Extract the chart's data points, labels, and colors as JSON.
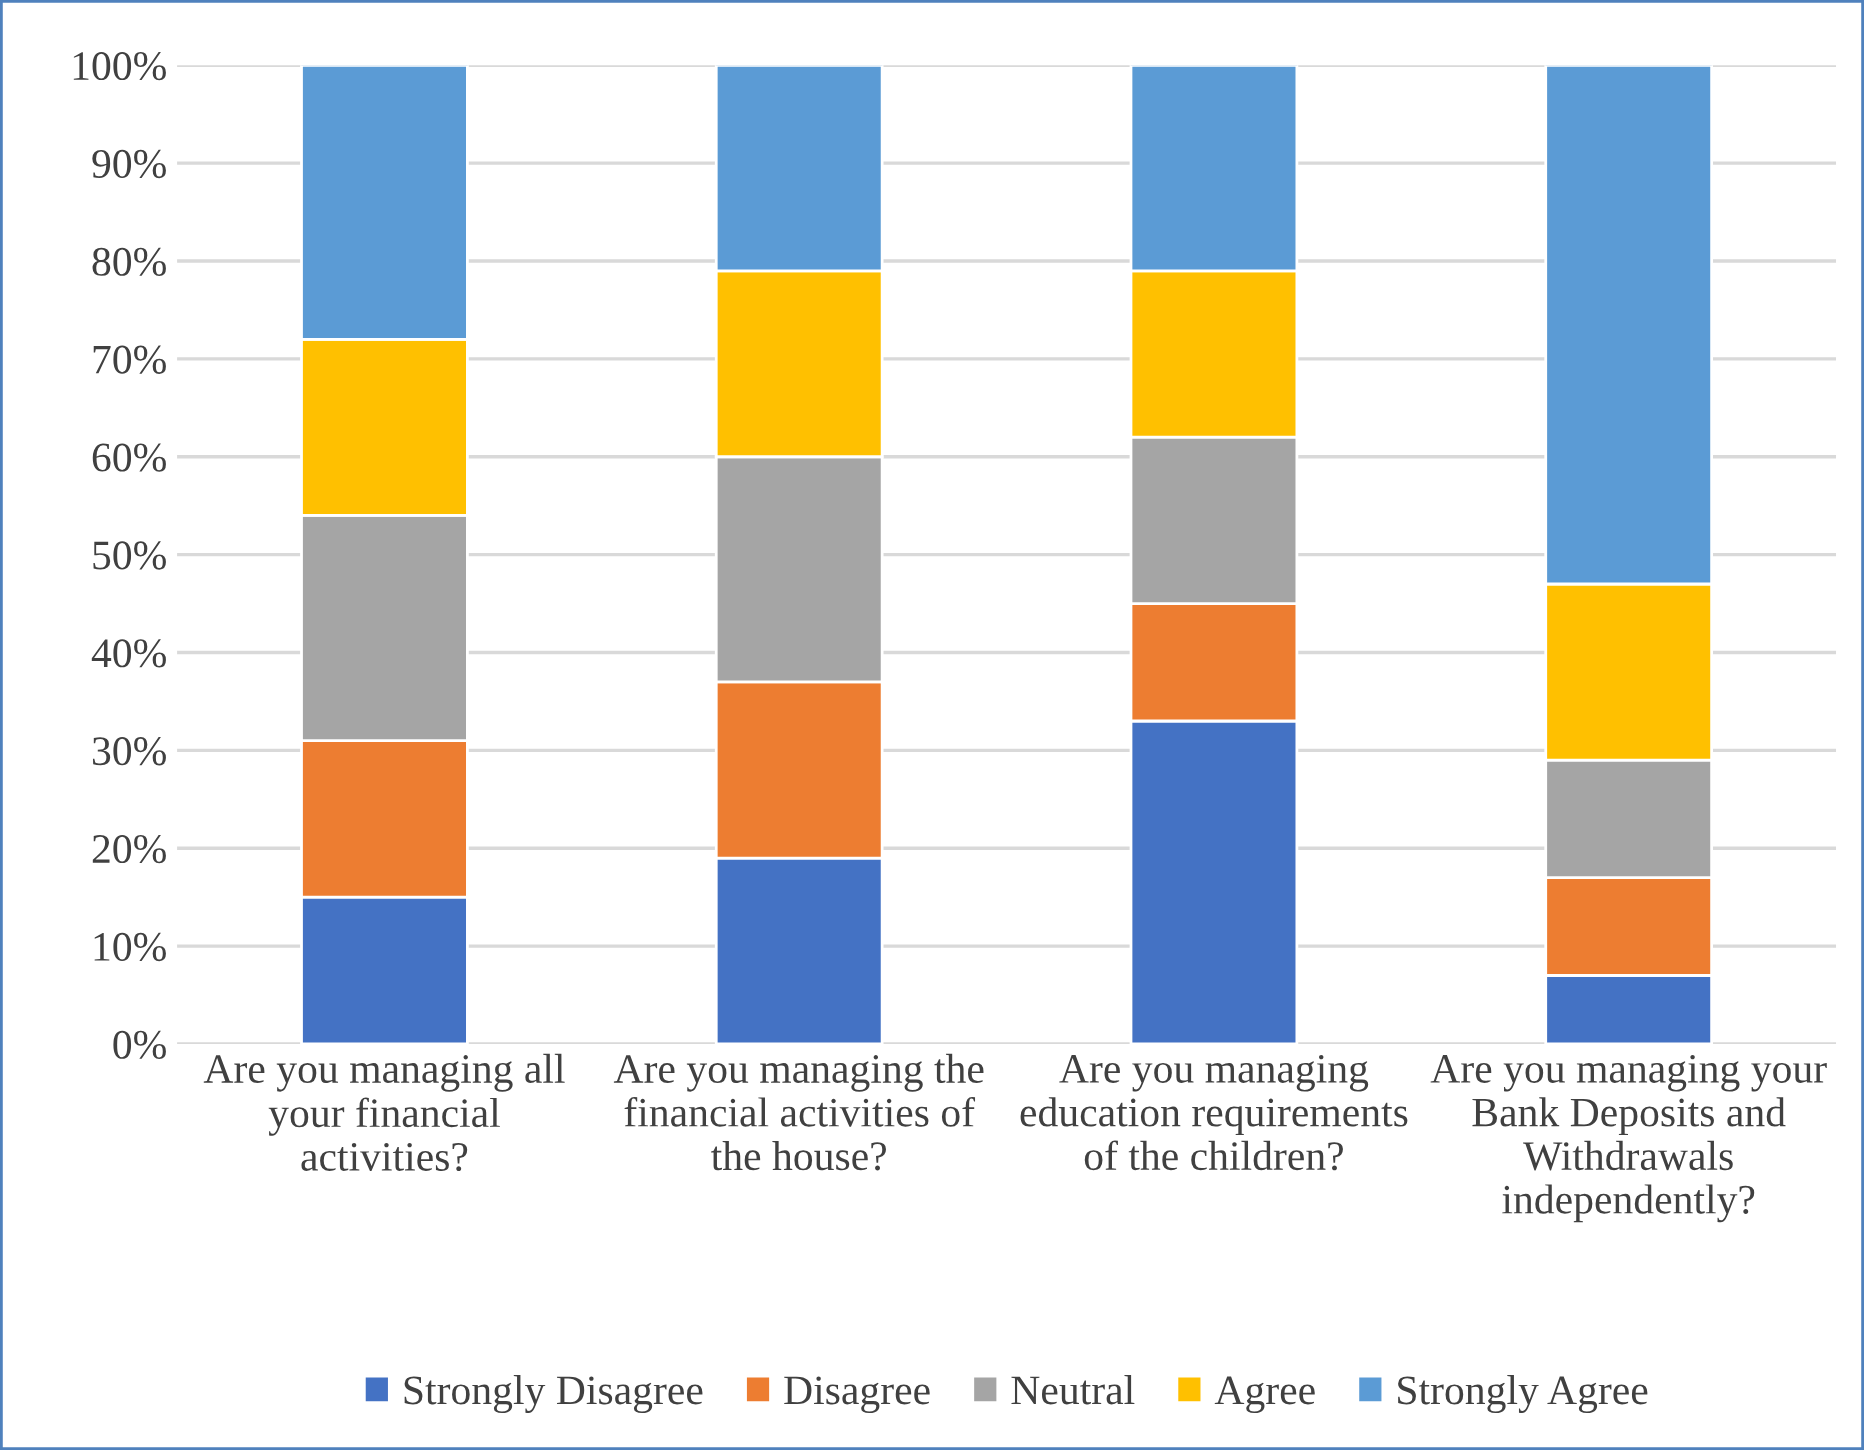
{
  "chart_data": {
    "type": "bar",
    "stacked": true,
    "categories": [
      "Are you managing all your financial activities?",
      "Are you managing the financial activities of the house?",
      "Are you managing education requirements of the children?",
      "Are you managing your Bank Deposits and Withdrawals independently?"
    ],
    "series": [
      {
        "name": "Strongly Disagree",
        "color": "#4472c4",
        "values": [
          15,
          19,
          33,
          7
        ]
      },
      {
        "name": "Disagree",
        "color": "#ed7d31",
        "values": [
          16,
          18,
          12,
          10
        ]
      },
      {
        "name": "Neutral",
        "color": "#a5a5a5",
        "values": [
          23,
          23,
          17,
          12
        ]
      },
      {
        "name": "Agree",
        "color": "#ffc000",
        "values": [
          18,
          19,
          17,
          18
        ]
      },
      {
        "name": "Strongly Agree",
        "color": "#5b9bd5",
        "values": [
          28,
          21,
          21,
          53
        ]
      }
    ],
    "ylim": [
      0,
      100
    ],
    "yticks": [
      {
        "value": 0,
        "label": "0%"
      },
      {
        "value": 10,
        "label": "10%"
      },
      {
        "value": 20,
        "label": "20%"
      },
      {
        "value": 30,
        "label": "30%"
      },
      {
        "value": 40,
        "label": "40%"
      },
      {
        "value": 50,
        "label": "50%"
      },
      {
        "value": 60,
        "label": "60%"
      },
      {
        "value": 70,
        "label": "70%"
      },
      {
        "value": 80,
        "label": "80%"
      },
      {
        "value": 90,
        "label": "90%"
      },
      {
        "value": 100,
        "label": "100%"
      }
    ],
    "grid": "y",
    "legend": "bottom"
  }
}
